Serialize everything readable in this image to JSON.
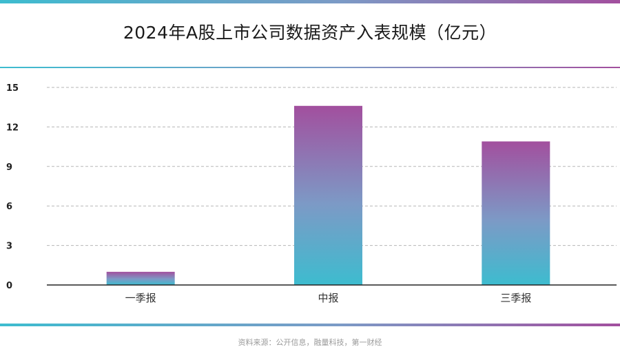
{
  "title": "2024年A股上市公司数据资产入表规模（亿元）",
  "source": "资料来源：公开信息，融量科技，第一财经",
  "colors": {
    "gradient_top": "#a24f9e",
    "gradient_mid": "#7c9ac6",
    "gradient_bottom": "#3dbccf",
    "gridline": "#b5b5b5",
    "axis": "#222222"
  },
  "chart_data": {
    "type": "bar",
    "categories": [
      "一季报",
      "中报",
      "三季报"
    ],
    "values": [
      1.0,
      13.6,
      10.9
    ],
    "ylim": [
      0,
      15
    ],
    "yticks": [
      0,
      3,
      6,
      9,
      12,
      15
    ],
    "xlabel": "",
    "ylabel": "",
    "grid": true,
    "legend": "none"
  }
}
